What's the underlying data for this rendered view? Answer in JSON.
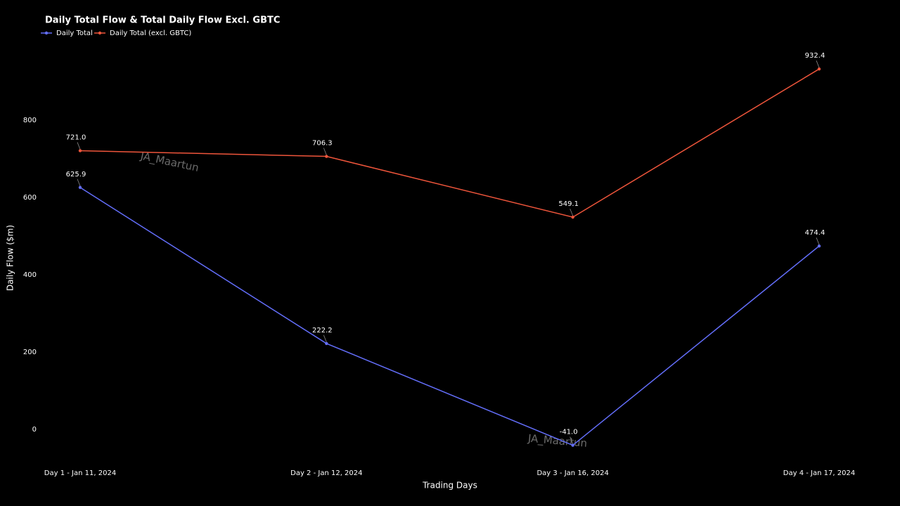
{
  "chart_data": {
    "type": "line",
    "title": "Daily Total Flow & Total Daily Flow Excl. GBTC",
    "x_label": "Trading Days",
    "y_label": "Daily Flow ($m)",
    "watermark": "JA_Maartun",
    "categories": [
      "Day 1 - Jan 11, 2024",
      "Day 2 - Jan 12, 2024",
      "Day 3 - Jan 16, 2024",
      "Day 4 - Jan 17, 2024"
    ],
    "series": [
      {
        "name": "Daily Total",
        "color": "#636efa",
        "values": [
          625.9,
          222.2,
          -41.0,
          474.4
        ],
        "value_labels": [
          "625.9",
          "222.2",
          "-41.0",
          "474.4"
        ]
      },
      {
        "name": "Daily Total (excl. GBTC)",
        "color": "#ef553b",
        "values": [
          721.0,
          706.3,
          549.1,
          932.4
        ],
        "value_labels": [
          "721.0",
          "706.3",
          "549.1",
          "932.4"
        ]
      }
    ],
    "ylim": [
      -80,
      1000
    ],
    "yticks": [
      0,
      200,
      400,
      600,
      800
    ],
    "grid": false,
    "legend": "top-left"
  }
}
